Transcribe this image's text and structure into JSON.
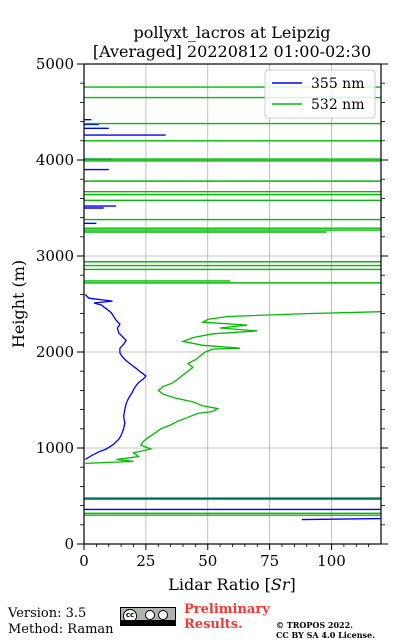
{
  "header": {
    "title_line1": "pollyxt_lacros at Leipzig",
    "title_line2": "[Averaged] 20220812 01:00-02:30"
  },
  "footer": {
    "version": "Version: 3.5",
    "method": "Method: Raman",
    "preliminary_line1": "Preliminary",
    "preliminary_line2": "Results.",
    "copyright_line1": "© TROPOS 2022.",
    "copyright_line2": "CC BY SA 4.0 License.",
    "license_badge_icon": "cc-by-sa-icon"
  },
  "chart_data": {
    "type": "line",
    "xlabel_prefix": "Lidar Ratio [",
    "xlabel_unit": "Sr",
    "xlabel_suffix": "]",
    "ylabel": "Height (m)",
    "xlim": [
      0,
      120
    ],
    "ylim": [
      0,
      5000
    ],
    "xticks": [
      0,
      25,
      50,
      75,
      100
    ],
    "yticks": [
      0,
      1000,
      2000,
      3000,
      4000,
      5000
    ],
    "grid": true,
    "legend_position": "upper right",
    "series": [
      {
        "name": "355 nm",
        "color": "#0000ff",
        "points": [
          [
            0.5,
            880
          ],
          [
            3,
            920
          ],
          [
            6,
            960
          ],
          [
            9,
            990
          ],
          [
            12,
            1040
          ],
          [
            14,
            1090
          ],
          [
            15,
            1130
          ],
          [
            16,
            1200
          ],
          [
            16.5,
            1260
          ],
          [
            16,
            1330
          ],
          [
            16.5,
            1400
          ],
          [
            17,
            1460
          ],
          [
            18,
            1520
          ],
          [
            19.5,
            1580
          ],
          [
            20.5,
            1630
          ],
          [
            22,
            1680
          ],
          [
            24,
            1720
          ],
          [
            25,
            1750
          ],
          [
            23,
            1790
          ],
          [
            21,
            1830
          ],
          [
            19,
            1870
          ],
          [
            17,
            1910
          ],
          [
            15.5,
            1950
          ],
          [
            14.5,
            1990
          ],
          [
            14.5,
            2040
          ],
          [
            16,
            2080
          ],
          [
            17,
            2120
          ],
          [
            15.5,
            2160
          ],
          [
            14,
            2200
          ],
          [
            13.5,
            2250
          ],
          [
            14.5,
            2290
          ],
          [
            13,
            2330
          ],
          [
            12,
            2370
          ],
          [
            11,
            2410
          ],
          [
            9,
            2450
          ],
          [
            7,
            2490
          ],
          [
            4,
            2510
          ],
          [
            11.5,
            2530
          ],
          [
            2,
            2560
          ],
          [
            0.5,
            2600
          ]
        ],
        "segments": [
          {
            "x": [
              88,
              120
            ],
            "y": [
              255,
              265
            ]
          },
          {
            "x": [
              0,
              120
            ],
            "y": [
              360,
              360
            ]
          },
          {
            "x": [
              0,
              120
            ],
            "y": [
              470,
              470
            ]
          },
          {
            "x": [
              0,
              5
            ],
            "y": [
              3340,
              3340
            ]
          },
          {
            "x": [
              0,
              8
            ],
            "y": [
              3500,
              3500
            ]
          },
          {
            "x": [
              0,
              13
            ],
            "y": [
              3520,
              3520
            ]
          },
          {
            "x": [
              0,
              10
            ],
            "y": [
              3900,
              3900
            ]
          },
          {
            "x": [
              0,
              11
            ],
            "y": [
              4010,
              4010
            ]
          },
          {
            "x": [
              0,
              33
            ],
            "y": [
              4260,
              4260
            ]
          },
          {
            "x": [
              0,
              10
            ],
            "y": [
              4330,
              4330
            ]
          },
          {
            "x": [
              0,
              6
            ],
            "y": [
              4370,
              4370
            ]
          },
          {
            "x": [
              0,
              3
            ],
            "y": [
              4420,
              4420
            ]
          }
        ]
      },
      {
        "name": "532 nm",
        "color": "#00bb00",
        "points": [
          [
            0.5,
            840
          ],
          [
            20,
            860
          ],
          [
            13,
            880
          ],
          [
            22,
            910
          ],
          [
            20,
            950
          ],
          [
            27,
            990
          ],
          [
            23,
            1030
          ],
          [
            24,
            1070
          ],
          [
            26,
            1110
          ],
          [
            29,
            1160
          ],
          [
            31,
            1200
          ],
          [
            35,
            1240
          ],
          [
            38,
            1280
          ],
          [
            42,
            1320
          ],
          [
            46,
            1360
          ],
          [
            52,
            1380
          ],
          [
            54,
            1410
          ],
          [
            48,
            1440
          ],
          [
            44,
            1480
          ],
          [
            37,
            1520
          ],
          [
            32,
            1560
          ],
          [
            30,
            1600
          ],
          [
            32,
            1640
          ],
          [
            36,
            1680
          ],
          [
            38,
            1720
          ],
          [
            40,
            1760
          ],
          [
            42,
            1800
          ],
          [
            44,
            1840
          ],
          [
            42,
            1880
          ],
          [
            45,
            1920
          ],
          [
            47,
            1960
          ],
          [
            49,
            2000
          ],
          [
            52,
            2030
          ],
          [
            63,
            2040
          ],
          [
            48,
            2070
          ],
          [
            40,
            2110
          ],
          [
            44,
            2150
          ],
          [
            52,
            2190
          ],
          [
            70,
            2220
          ],
          [
            55,
            2250
          ],
          [
            66,
            2280
          ],
          [
            48,
            2310
          ],
          [
            50,
            2340
          ],
          [
            58,
            2370
          ],
          [
            90,
            2400
          ],
          [
            120,
            2420
          ]
        ],
        "segments": [
          {
            "x": [
              0,
              120
            ],
            "y": [
              300,
              300
            ]
          },
          {
            "x": [
              0,
              120
            ],
            "y": [
              320,
              320
            ]
          },
          {
            "x": [
              0,
              120
            ],
            "y": [
              480,
              480
            ]
          },
          {
            "x": [
              0,
              120
            ],
            "y": [
              2720,
              2720
            ]
          },
          {
            "x": [
              0,
              59
            ],
            "y": [
              2740,
              2740
            ]
          },
          {
            "x": [
              0,
              120
            ],
            "y": [
              2860,
              2860
            ]
          },
          {
            "x": [
              0,
              120
            ],
            "y": [
              2900,
              2900
            ]
          },
          {
            "x": [
              0,
              120
            ],
            "y": [
              2940,
              2940
            ]
          },
          {
            "x": [
              0,
              98
            ],
            "y": [
              3250,
              3250
            ]
          },
          {
            "x": [
              0,
              120
            ],
            "y": [
              3270,
              3270
            ]
          },
          {
            "x": [
              0,
              120
            ],
            "y": [
              3290,
              3290
            ]
          },
          {
            "x": [
              0,
              120
            ],
            "y": [
              3380,
              3380
            ]
          },
          {
            "x": [
              0,
              120
            ],
            "y": [
              3580,
              3580
            ]
          },
          {
            "x": [
              0,
              120
            ],
            "y": [
              3640,
              3640
            ]
          },
          {
            "x": [
              0,
              120
            ],
            "y": [
              3670,
              3670
            ]
          },
          {
            "x": [
              0,
              120
            ],
            "y": [
              3780,
              3780
            ]
          },
          {
            "x": [
              0,
              120
            ],
            "y": [
              3990,
              3990
            ]
          },
          {
            "x": [
              0,
              120
            ],
            "y": [
              4010,
              4010
            ]
          },
          {
            "x": [
              0,
              120
            ],
            "y": [
              4200,
              4200
            ]
          },
          {
            "x": [
              0,
              120
            ],
            "y": [
              4380,
              4380
            ]
          },
          {
            "x": [
              0,
              120
            ],
            "y": [
              4650,
              4650
            ]
          },
          {
            "x": [
              0,
              120
            ],
            "y": [
              4760,
              4760
            ]
          }
        ]
      }
    ]
  }
}
